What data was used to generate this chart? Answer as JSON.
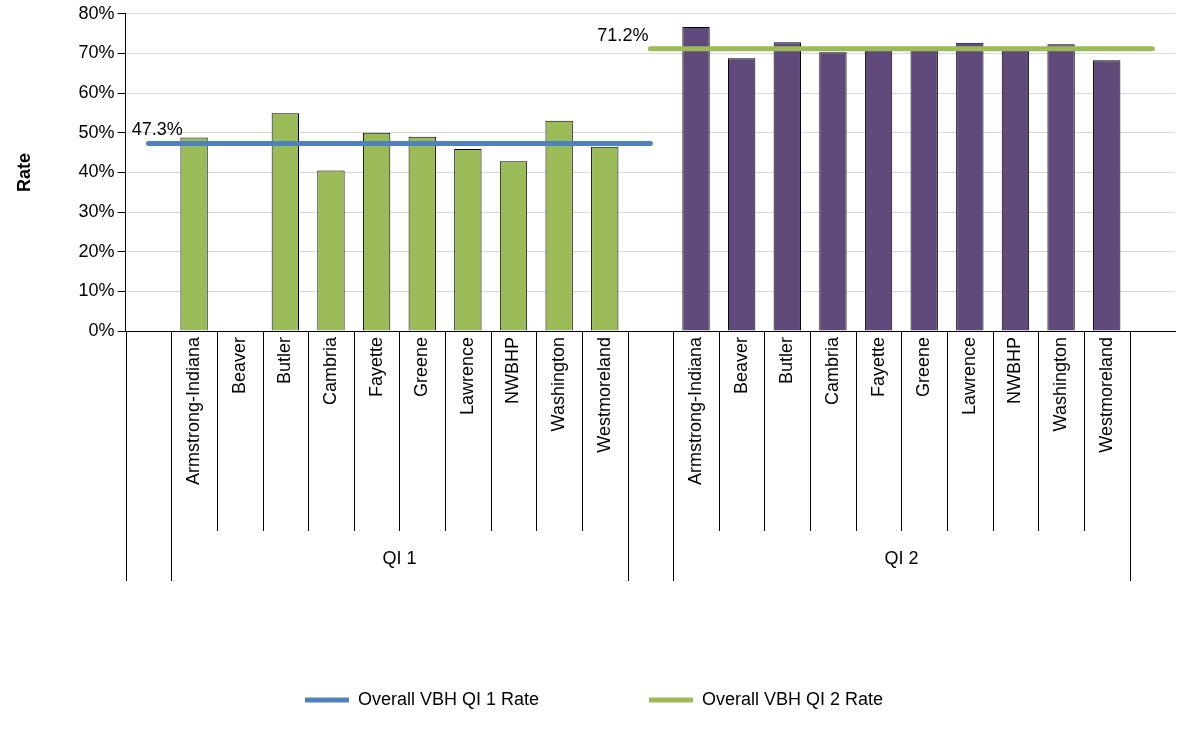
{
  "chart_data": {
    "type": "bar",
    "ylabel": "Rate",
    "categories": [
      null,
      "Armstrong-Indiana",
      "Beaver",
      "Butler",
      "Cambria",
      "Fayette",
      "Greene",
      "Lawrence",
      "NWBHP",
      "Washington",
      "Westmoreland",
      null,
      "Armstrong-Indiana",
      "Beaver",
      "Butler",
      "Cambria",
      "Fayette",
      "Greene",
      "Lawrence",
      "NWBHP",
      "Washington",
      "Westmoreland",
      null
    ],
    "series": [
      {
        "color": "#9bbb59",
        "values": [
          null,
          48.8,
          null,
          54.9,
          40.5,
          50.0,
          49.0,
          45.9,
          42.8,
          53.0,
          46.5,
          null,
          null,
          null,
          null,
          null,
          null,
          null,
          null,
          null,
          null,
          null,
          null
        ]
      },
      {
        "color": "#604a7b",
        "values": [
          null,
          null,
          null,
          null,
          null,
          null,
          null,
          null,
          null,
          null,
          null,
          null,
          76.7,
          68.8,
          72.8,
          70.3,
          71.0,
          71.0,
          72.7,
          71.0,
          72.3,
          68.3,
          null
        ]
      },
      {
        "type": "line",
        "name": "Overall VBH QI 1 Rate",
        "color": "#4f81bd",
        "values": [
          47.3,
          47.3,
          47.3,
          47.3,
          47.3,
          47.3,
          47.3,
          47.3,
          47.3,
          47.3,
          47.3,
          47.3,
          null,
          null,
          null,
          null,
          null,
          null,
          null,
          null,
          null,
          null,
          null
        ],
        "value_labels": [
          "47.3%",
          null,
          null,
          null,
          null,
          null,
          null,
          null,
          null,
          null,
          null,
          null,
          null,
          null,
          null,
          null,
          null,
          null,
          null,
          null,
          null,
          null,
          null
        ]
      },
      {
        "type": "line",
        "name": "Overall VBH QI 2 Rate",
        "color": "#9bbb59",
        "values": [
          null,
          null,
          null,
          null,
          null,
          null,
          null,
          null,
          null,
          null,
          null,
          71.2,
          71.2,
          71.2,
          71.2,
          71.2,
          71.2,
          71.2,
          71.2,
          71.2,
          71.2,
          71.2,
          71.2
        ],
        "value_labels": [
          null,
          null,
          null,
          null,
          null,
          null,
          null,
          null,
          null,
          null,
          null,
          "71.2%",
          null,
          null,
          null,
          null,
          null,
          null,
          null,
          null,
          null,
          null,
          null
        ]
      }
    ],
    "annotations": [
      "QI 1",
      "QI 2"
    ],
    "ylim": [
      0,
      80
    ],
    "yticks": [
      {
        "value": 0,
        "label": "0%"
      },
      {
        "value": 10,
        "label": "10%"
      },
      {
        "value": 20,
        "label": "20%"
      },
      {
        "value": 30,
        "label": "30%"
      },
      {
        "value": 40,
        "label": "40%"
      },
      {
        "value": 50,
        "label": "50%"
      },
      {
        "value": 60,
        "label": "60%"
      },
      {
        "value": 70,
        "label": "70%"
      },
      {
        "value": 80,
        "label": "80%"
      }
    ],
    "grid": "y",
    "legend": "bottom",
    "marker": "none",
    "line_style": "solid"
  }
}
